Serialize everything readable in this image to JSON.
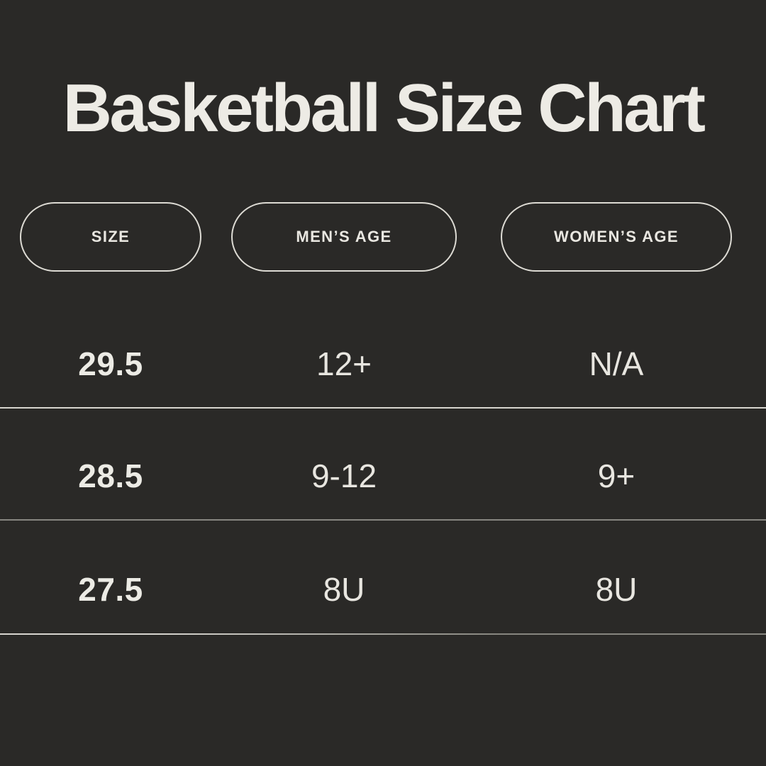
{
  "title": "Basketball Size Chart",
  "theme": {
    "background": "#2a2927",
    "text_cream": "#eae8e2",
    "pill_border": "#dddbd4",
    "divider_light": "#d7d5cf",
    "divider_dim": "#868580"
  },
  "table": {
    "columns": [
      {
        "label": "SIZE"
      },
      {
        "label": "MEN’S AGE"
      },
      {
        "label": "WOMEN’S AGE"
      }
    ],
    "rows": [
      {
        "size": "29.5",
        "mens_age": "12+",
        "womens_age": "N/A"
      },
      {
        "size": "28.5",
        "mens_age": "9-12",
        "womens_age": "9+"
      },
      {
        "size": "27.5",
        "mens_age": "8U",
        "womens_age": "8U"
      }
    ]
  }
}
